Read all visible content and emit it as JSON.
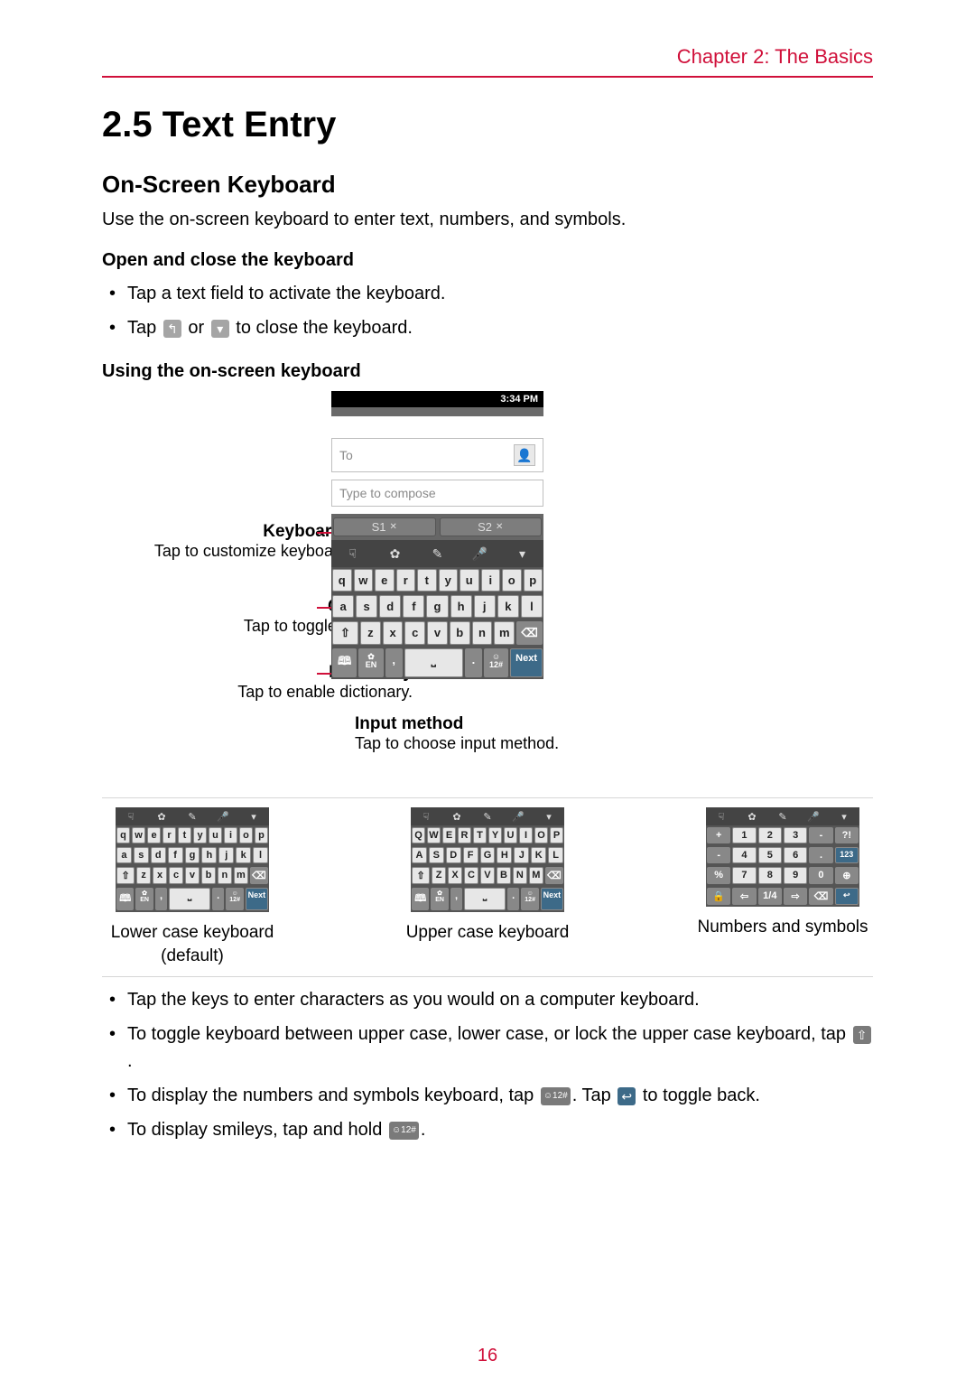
{
  "chapter_label": "Chapter 2: The Basics",
  "page_number": "16",
  "h1": "2.5 Text Entry",
  "h2": "On-Screen Keyboard",
  "intro": "Use the on-screen keyboard to enter text, numbers, and symbols.",
  "open_close": {
    "title": "Open and close the keyboard",
    "items": [
      {
        "pre": "Tap a text field to activate the keyboard.",
        "icon1": null,
        "mid": null,
        "icon2": null,
        "post": null
      },
      {
        "pre": "Tap ",
        "icon1": "↰",
        "mid": " or ",
        "icon2": "▾",
        "post": " to close the keyboard."
      }
    ]
  },
  "using_title": "Using the on-screen keyboard",
  "statusbar_time": "3:34 PM",
  "to_placeholder": "To",
  "compose_placeholder": "Type to compose",
  "sugg": [
    "S1",
    "S2"
  ],
  "rows": {
    "r1": [
      "q",
      "w",
      "e",
      "r",
      "t",
      "y",
      "u",
      "i",
      "o",
      "p"
    ],
    "r2": [
      "a",
      "s",
      "d",
      "f",
      "g",
      "h",
      "j",
      "k",
      "l"
    ],
    "r3": [
      "⇧",
      "z",
      "x",
      "c",
      "v",
      "b",
      "n",
      "m",
      "⌫"
    ]
  },
  "en_label": "EN",
  "smiley_label": "☺",
  "sym_label": "12#",
  "next_label": "Next",
  "callouts": {
    "settings": {
      "title": "Keyboard settings",
      "desc": "Tap to customize keyboard settings."
    },
    "caps": {
      "title": "CAPs lock",
      "desc": "Tap to toggle keyboard."
    },
    "dict": {
      "title": "Dictionary",
      "desc": "Tap to enable dictionary."
    },
    "input": {
      "title": "Input method",
      "desc": "Tap to choose input method."
    }
  },
  "variants": {
    "lower": {
      "caption_l1": "Lower case keyboard",
      "caption_l2": "(default)"
    },
    "upper": {
      "caption_l1": "Upper case keyboard",
      "caption_l2": "",
      "r1": [
        "Q",
        "W",
        "E",
        "R",
        "T",
        "Y",
        "U",
        "I",
        "O",
        "P"
      ],
      "r2": [
        "A",
        "S",
        "D",
        "F",
        "G",
        "H",
        "J",
        "K",
        "L"
      ],
      "r3": [
        "⇧",
        "Z",
        "X",
        "C",
        "V",
        "B",
        "N",
        "M",
        "⌫"
      ]
    },
    "num": {
      "caption_l1": "Numbers and symbols",
      "caption_l2": "",
      "r1": [
        "+",
        "1",
        "2",
        "3",
        "-",
        "?!"
      ],
      "r2": [
        "-",
        "4",
        "5",
        "6",
        ".",
        "123"
      ],
      "r3": [
        "%",
        "7",
        "8",
        "9",
        "0",
        "⊕"
      ],
      "r4": [
        "🔒",
        "⇦",
        "1/4",
        "⇨",
        "⌫",
        "↩"
      ]
    }
  },
  "bottom_list": [
    {
      "pre": "Tap the keys to enter characters as you would on a computer keyboard."
    },
    {
      "pre": "To toggle keyboard between upper case, lower case, or lock the upper case keyboard, tap ",
      "icon1": "⇧",
      "post": "."
    },
    {
      "pre": "To display the numbers and symbols keyboard, tap ",
      "icon1": "☺12#",
      "mid": ". Tap ",
      "icon2": "↩",
      "post": " to toggle back."
    },
    {
      "pre": "To display smileys, tap and hold ",
      "icon1": "☺12#",
      "post": "."
    }
  ],
  "colors": {
    "accent": "#d0103a"
  }
}
